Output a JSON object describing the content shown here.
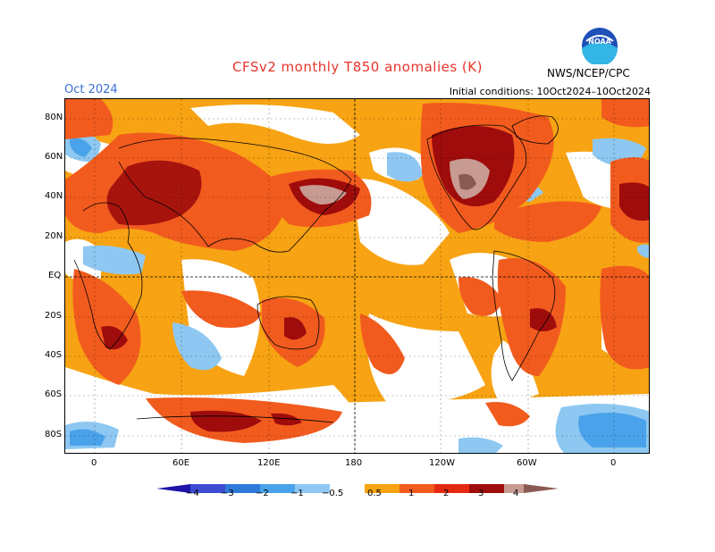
{
  "title": "CFSv2 monthly T850 anomalies (K)",
  "month_label": "Oct 2024",
  "initial_conditions": "Initial conditions: 10Oct2024–10Oct2024",
  "agency": "NWS/NCEP/CPC",
  "logo_text": "NOAA",
  "lat_labels": [
    "80N",
    "60N",
    "40N",
    "20N",
    "EQ",
    "20S",
    "40S",
    "60S",
    "80S"
  ],
  "lon_labels": [
    "0",
    "60E",
    "120E",
    "180",
    "120W",
    "60W",
    "0"
  ],
  "colorbar": {
    "labels": [
      "−4",
      "−3",
      "−2",
      "−1",
      "−0.5",
      "0.5",
      "1",
      "2",
      "3",
      "4"
    ],
    "colors": [
      "#1f14a8",
      "#3c4bd0",
      "#2f7ad8",
      "#4aa3ea",
      "#8ec8f2",
      "#ffffff",
      "#f7a313",
      "#f25b1e",
      "#e32a10",
      "#9e0c0c",
      "#c79a92",
      "#8a5a52"
    ]
  },
  "colors": {
    "title": "#e8332a",
    "month": "#3b6fd1",
    "neutral": "#ffffff"
  }
}
